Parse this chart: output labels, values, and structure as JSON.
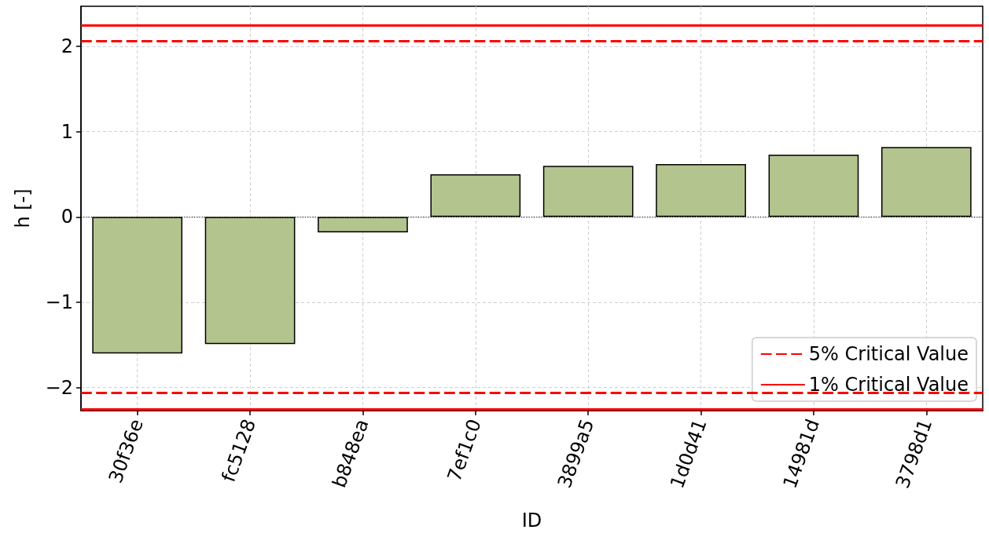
{
  "chart_data": {
    "type": "bar",
    "xlabel": "ID",
    "ylabel": "h [-]",
    "categories": [
      "30f36e",
      "fc5128",
      "b848ea",
      "7ef1c0",
      "3899a5",
      "1d0d41",
      "14981d",
      "3798d1"
    ],
    "values": [
      -1.6,
      -1.49,
      -0.18,
      0.5,
      0.6,
      0.62,
      0.73,
      0.82
    ],
    "color": "#b4c48e",
    "ylim": [
      -2.27,
      2.47
    ],
    "yticks": [
      {
        "value": -2,
        "label": "−2"
      },
      {
        "value": -1,
        "label": "−1"
      },
      0,
      1,
      2
    ],
    "grid": true,
    "legend": "bottom right",
    "ref_lines": [
      {
        "axis": "y",
        "value": 2.06,
        "label": "5% Critical Value",
        "color": "#ff0000",
        "line_style": "dashed"
      },
      {
        "axis": "y",
        "value": -2.06,
        "color": "#ff0000",
        "line_style": "dashed"
      },
      {
        "axis": "y",
        "value": 2.25,
        "label": "1% Critical Value",
        "color": "#ff0000",
        "line_style": "solid"
      },
      {
        "axis": "y",
        "value": -2.25,
        "color": "#ff0000",
        "line_style": "solid"
      },
      {
        "axis": "y",
        "value": 0,
        "color": "#000000",
        "line_style": "dotted"
      }
    ]
  }
}
